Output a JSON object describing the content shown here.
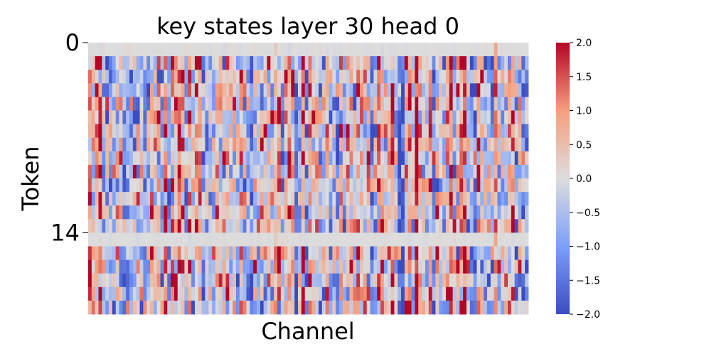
{
  "chart_data": {
    "type": "heatmap",
    "title": "key states layer 30 head 0",
    "xlabel": "Channel",
    "ylabel": "Token",
    "n_rows": 20,
    "n_cols": 128,
    "y_ticks": [
      {
        "value": 0,
        "label": "0"
      },
      {
        "value": 14,
        "label": "14"
      }
    ],
    "colorbar": {
      "colormap": "coolwarm",
      "vmin": -2.0,
      "vmax": 2.0,
      "ticks": [
        {
          "value": 2.0,
          "label": "2.0"
        },
        {
          "value": 1.5,
          "label": "1.5"
        },
        {
          "value": 1.0,
          "label": "1.0"
        },
        {
          "value": 0.5,
          "label": "0.5"
        },
        {
          "value": 0.0,
          "label": "0.0"
        },
        {
          "value": -0.5,
          "label": "−0.5"
        },
        {
          "value": -1.0,
          "label": "−1.0"
        },
        {
          "value": -1.5,
          "label": "−1.5"
        },
        {
          "value": -2.0,
          "label": "−2.0"
        }
      ]
    },
    "near_zero_rows": [
      0,
      14
    ],
    "outlier_channels": [
      {
        "channel": 54,
        "value": 0.6
      },
      {
        "channel": 118,
        "value": 1.8
      }
    ],
    "seed": 30
  }
}
